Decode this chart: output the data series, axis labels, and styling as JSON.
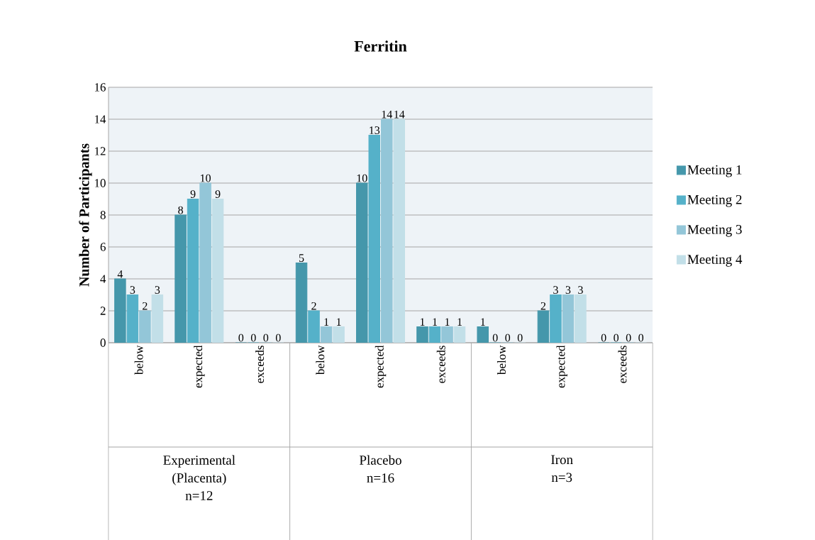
{
  "chart_data": {
    "type": "bar",
    "title": "Ferritin",
    "ylabel": "Number of Participants",
    "categories": [
      "below",
      "expected",
      "exceeds",
      "below",
      "expected",
      "exceeds",
      "below",
      "expected",
      "exceeds"
    ],
    "annotations": [
      "Experimental (Placenta) n=12",
      "Placebo n=16",
      "Iron n=3"
    ],
    "series": [
      {
        "name": "Meeting 1",
        "color": "#4597ab",
        "values": [
          4,
          8,
          0,
          5,
          10,
          1,
          1,
          2,
          0
        ]
      },
      {
        "name": "Meeting 2",
        "color": "#55b1c9",
        "values": [
          3,
          9,
          0,
          2,
          13,
          1,
          0,
          3,
          0
        ]
      },
      {
        "name": "Meeting 3",
        "color": "#93c6d8",
        "values": [
          2,
          10,
          0,
          1,
          14,
          1,
          0,
          3,
          0
        ]
      },
      {
        "name": "Meeting 4",
        "color": "#c2dfe8",
        "values": [
          3,
          9,
          0,
          1,
          14,
          1,
          0,
          3,
          0
        ]
      }
    ],
    "ylim": [
      0,
      16
    ],
    "yticks": [
      0,
      2,
      4,
      6,
      8,
      10,
      12,
      14,
      16
    ],
    "grid": "y",
    "legend": "right",
    "data_labels": true
  }
}
